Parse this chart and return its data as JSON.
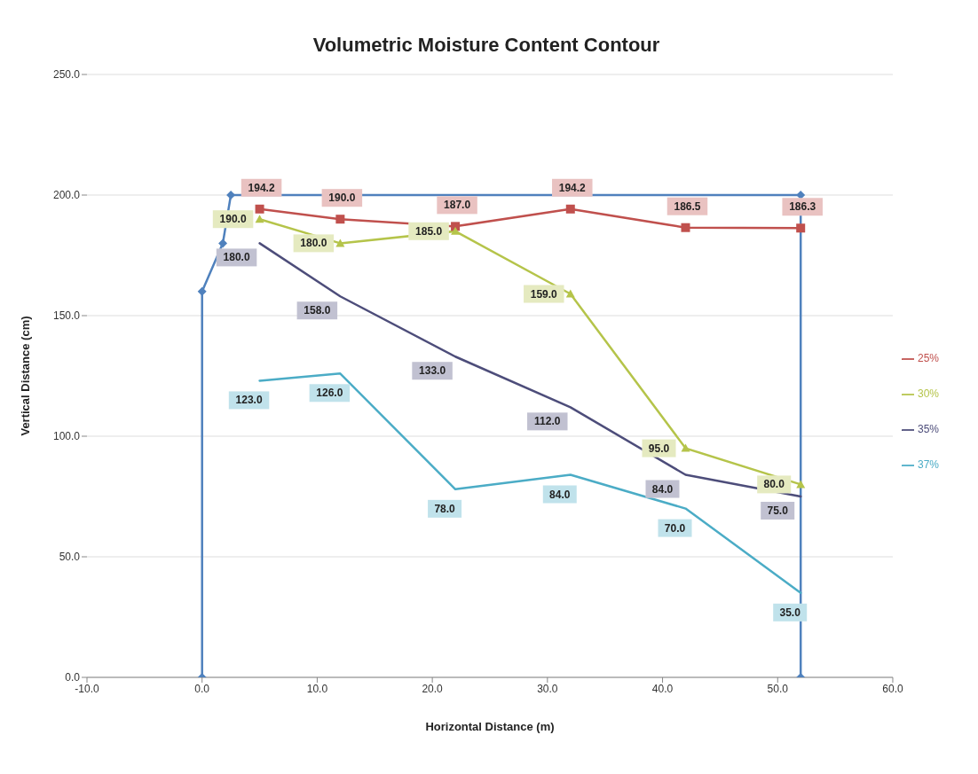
{
  "chart_data": {
    "type": "line",
    "title": "Volumetric Moisture Content Contour",
    "xlabel": "Horizontal Distance (m)",
    "ylabel": "Vertical Distance (cm)",
    "xlim": [
      -10,
      60
    ],
    "xticks": [
      {
        "value": -10,
        "label": "-10.0"
      },
      {
        "value": 0,
        "label": "0.0"
      },
      {
        "value": 10,
        "label": "10.0"
      },
      {
        "value": 20,
        "label": "20.0"
      },
      {
        "value": 30,
        "label": "30.0"
      },
      {
        "value": 40,
        "label": "40.0"
      },
      {
        "value": 50,
        "label": "50.0"
      },
      {
        "value": 60,
        "label": "60.0"
      }
    ],
    "ylim": [
      0,
      250
    ],
    "yticks": [
      {
        "value": 0,
        "label": "0.0"
      },
      {
        "value": 50,
        "label": "50.0"
      },
      {
        "value": 100,
        "label": "100.0"
      },
      {
        "value": 150,
        "label": "150.0"
      },
      {
        "value": 200,
        "label": "200.0"
      },
      {
        "value": 250,
        "label": "250.0"
      }
    ],
    "grid": "y",
    "legend": "right",
    "series": [
      {
        "color": "#4f81bd",
        "marker": "diamond",
        "x": [
          0,
          0,
          1.8,
          2.5,
          52,
          52
        ],
        "values": [
          0,
          160,
          180,
          200,
          200,
          0
        ]
      },
      {
        "name": "25%",
        "color": "#c0504d",
        "marker": "square",
        "x": [
          5,
          12,
          22,
          32,
          42,
          52
        ],
        "values": [
          194.2,
          190.0,
          187.0,
          194.2,
          186.5,
          186.3
        ],
        "value_labels": [
          "194.2",
          "190.0",
          "187.0",
          "194.2",
          "186.5",
          "186.3"
        ]
      },
      {
        "name": "30%",
        "color": "#b5c44a",
        "marker": "triangle",
        "x": [
          5,
          12,
          22,
          32,
          42,
          52
        ],
        "values": [
          190.0,
          180.0,
          185.0,
          159.0,
          95.0,
          80.0
        ],
        "value_labels": [
          "190.0",
          "180.0",
          "185.0",
          "159.0",
          "95.0",
          "80.0"
        ]
      },
      {
        "name": "35%",
        "color": "#4d4d7a",
        "marker": "none",
        "x": [
          5,
          12,
          22,
          32,
          42,
          52
        ],
        "values": [
          180.0,
          158.0,
          133.0,
          112.0,
          84.0,
          75.0
        ],
        "value_labels": [
          "180.0",
          "158.0",
          "133.0",
          "112.0",
          "84.0",
          "75.0"
        ]
      },
      {
        "name": "37%",
        "color": "#4bacc6",
        "marker": "none",
        "x": [
          5,
          12,
          22,
          32,
          42,
          52
        ],
        "values": [
          123.0,
          126.0,
          78.0,
          84.0,
          70.0,
          35.0
        ],
        "value_labels": [
          "123.0",
          "126.0",
          "78.0",
          "84.0",
          "70.0",
          "35.0"
        ]
      }
    ]
  }
}
